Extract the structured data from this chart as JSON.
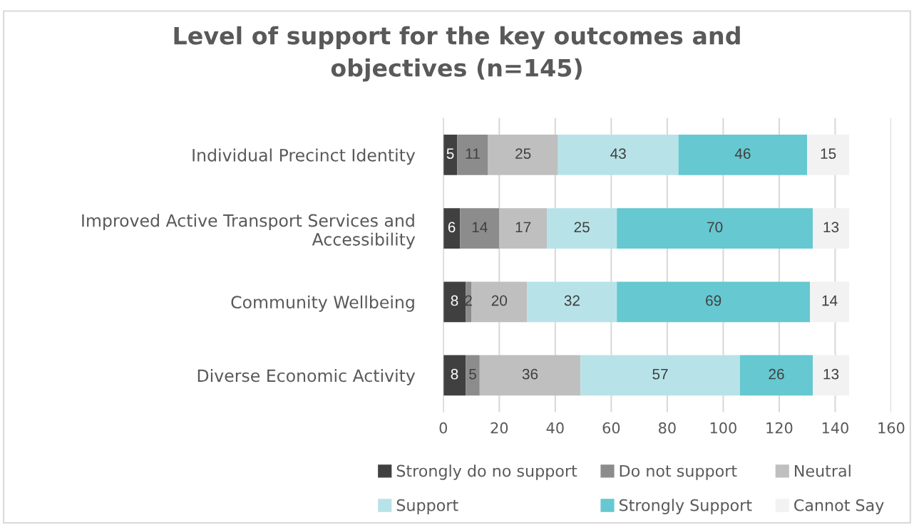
{
  "chart_data": {
    "type": "bar",
    "orientation": "horizontal",
    "stacked": true,
    "title": "Level of support for the key outcomes and objectives (n=145)",
    "categories": [
      "Individual Precinct Identity",
      "Improved Active Transport Services and Accessibility",
      "Community Wellbeing",
      "Diverse Economic Activity"
    ],
    "series": [
      {
        "name": "Strongly do no support",
        "color": "#404040",
        "values": [
          5,
          6,
          8,
          8
        ]
      },
      {
        "name": "Do not support",
        "color": "#8c8c8c",
        "values": [
          11,
          14,
          2,
          5
        ]
      },
      {
        "name": "Neutral",
        "color": "#bfbfbf",
        "values": [
          25,
          17,
          20,
          36
        ]
      },
      {
        "name": "Support",
        "color": "#b7e3e8",
        "values": [
          43,
          25,
          32,
          57
        ]
      },
      {
        "name": "Strongly Support",
        "color": "#66c8d0",
        "values": [
          46,
          70,
          69,
          26
        ]
      },
      {
        "name": "Cannot Say",
        "color": "#f2f2f2",
        "values": [
          15,
          13,
          14,
          13
        ]
      }
    ],
    "xlim": [
      0,
      160
    ],
    "xticks": [
      0,
      20,
      40,
      60,
      80,
      100,
      120,
      140,
      160
    ],
    "grid": "x",
    "legend": "bottom",
    "data_labels": true
  }
}
